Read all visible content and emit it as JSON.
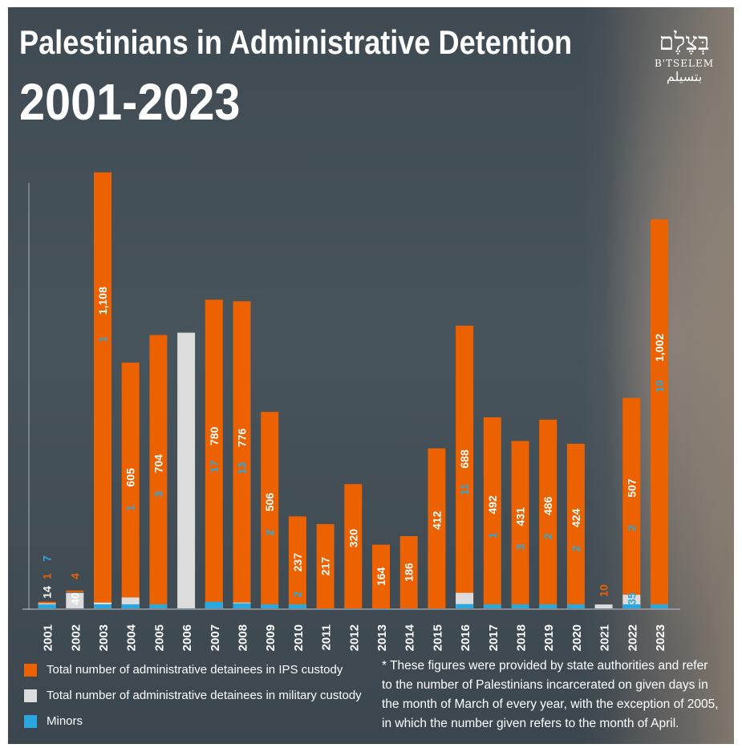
{
  "title": "Palestinians in Administrative Detention",
  "subtitle": "2001-2023",
  "logo": {
    "hebrew": "בְּצֶלֶם",
    "latin": "B'TSELEM",
    "arabic": "بتسيلم"
  },
  "colors": {
    "ips": "#ec6100",
    "military": "#dcdcdc",
    "minors": "#29a8e0"
  },
  "chart_data": {
    "type": "bar",
    "stacked": true,
    "categories": [
      "2001",
      "2002",
      "2003",
      "2004",
      "2005",
      "2006",
      "2007",
      "2008",
      "2009",
      "2010",
      "2011",
      "2012",
      "2013",
      "2014",
      "2015",
      "2016",
      "2017",
      "2018",
      "2019",
      "2020",
      "2021",
      "2022",
      "2023"
    ],
    "series": [
      {
        "name": "Total number of administrative detainees in IPS custody",
        "values": [
          1,
          4,
          1108,
          605,
          704,
          0,
          780,
          776,
          506,
          237,
          217,
          320,
          164,
          186,
          412,
          688,
          492,
          431,
          486,
          424,
          0,
          507,
          1002
        ]
      },
      {
        "name": "Total number of administrative detainees in military custody",
        "values": [
          14,
          40,
          15,
          28,
          0,
          710,
          15,
          15,
          0,
          0,
          0,
          0,
          0,
          0,
          0,
          40,
          0,
          0,
          0,
          0,
          10,
          35,
          0
        ]
      },
      {
        "name": "Minors",
        "values": [
          7,
          null,
          1,
          1,
          3,
          null,
          17,
          13,
          2,
          2,
          null,
          null,
          null,
          null,
          null,
          11,
          1,
          3,
          2,
          2,
          null,
          2,
          10
        ]
      }
    ],
    "labels": [
      {
        "year": "2001",
        "ips": "1",
        "military": "14",
        "minors": "7"
      },
      {
        "year": "2002",
        "ips": "4",
        "military": "40",
        "minors": ""
      },
      {
        "year": "2003",
        "ips": "1,108",
        "military": "",
        "minors": "1"
      },
      {
        "year": "2004",
        "ips": "605",
        "military": "",
        "minors": "1"
      },
      {
        "year": "2005",
        "ips": "704",
        "military": "",
        "minors": "3"
      },
      {
        "year": "2006",
        "ips": "",
        "military": "",
        "minors": ""
      },
      {
        "year": "2007",
        "ips": "780",
        "military": "",
        "minors": "17"
      },
      {
        "year": "2008",
        "ips": "776",
        "military": "",
        "minors": "13"
      },
      {
        "year": "2009",
        "ips": "506",
        "military": "",
        "minors": "2"
      },
      {
        "year": "2010",
        "ips": "237",
        "military": "",
        "minors": "2"
      },
      {
        "year": "2011",
        "ips": "217",
        "military": "",
        "minors": ""
      },
      {
        "year": "2012",
        "ips": "320",
        "military": "",
        "minors": ""
      },
      {
        "year": "2013",
        "ips": "164",
        "military": "",
        "minors": ""
      },
      {
        "year": "2014",
        "ips": "186",
        "military": "",
        "minors": ""
      },
      {
        "year": "2015",
        "ips": "412",
        "military": "",
        "minors": ""
      },
      {
        "year": "2016",
        "ips": "688",
        "military": "",
        "minors": "11"
      },
      {
        "year": "2017",
        "ips": "492",
        "military": "",
        "minors": "1"
      },
      {
        "year": "2018",
        "ips": "431",
        "military": "",
        "minors": "3"
      },
      {
        "year": "2019",
        "ips": "486",
        "military": "",
        "minors": "2"
      },
      {
        "year": "2020",
        "ips": "424",
        "military": "",
        "minors": "2"
      },
      {
        "year": "2021",
        "ips": "",
        "military": "10",
        "minors": ""
      },
      {
        "year": "2022",
        "ips": "507",
        "military": "35",
        "minors": "2"
      },
      {
        "year": "2023",
        "ips": "1,002",
        "military": "",
        "minors": "10"
      }
    ],
    "ylim": [
      0,
      1150
    ],
    "grid": false
  },
  "legend": [
    {
      "key": "ips",
      "label": "Total number of administrative detainees in IPS custody"
    },
    {
      "key": "military",
      "label": "Total number of administrative detainees in military custody"
    },
    {
      "key": "minors",
      "label": "Minors"
    }
  ],
  "footnote": "* These figures were provided by state authorities and refer to the number of Palestinians incarcerated on given days in the month of March of every year, with the exception of 2005, in which the number given refers to the month of April."
}
